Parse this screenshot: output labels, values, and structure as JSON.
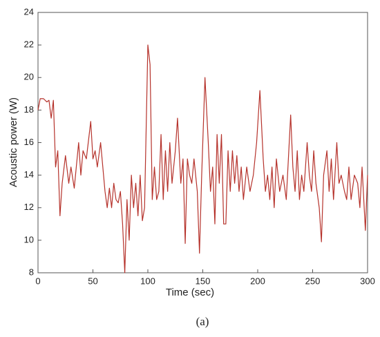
{
  "chart_data": {
    "type": "line",
    "x_label": "Time (sec)",
    "y_label": "Acoustic power (W)",
    "caption": "(a)",
    "x": [
      0,
      2,
      5,
      8,
      10,
      12,
      14,
      16,
      18,
      20,
      22,
      25,
      28,
      30,
      33,
      35,
      37,
      39,
      41,
      44,
      48,
      50,
      52,
      54,
      57,
      59,
      61,
      63,
      65,
      67,
      69,
      71,
      73,
      75,
      77,
      79,
      81,
      83,
      85,
      87,
      89,
      91,
      93,
      95,
      97,
      100,
      102,
      104,
      106,
      108,
      110,
      112,
      114,
      116,
      118,
      120,
      122,
      125,
      127,
      130,
      132,
      134,
      136,
      138,
      140,
      142,
      145,
      147,
      149,
      152,
      155,
      157,
      159,
      161,
      163,
      165,
      167,
      169,
      171,
      173,
      175,
      177,
      179,
      181,
      183,
      185,
      187,
      190,
      193,
      196,
      199,
      202,
      205,
      207,
      209,
      211,
      213,
      215,
      217,
      220,
      223,
      226,
      230,
      232,
      234,
      236,
      238,
      240,
      242,
      245,
      247,
      249,
      251,
      253,
      256,
      258,
      260,
      263,
      265,
      267,
      269,
      272,
      274,
      276,
      279,
      281,
      283,
      285,
      288,
      291,
      293,
      295,
      298,
      300
    ],
    "series": [
      {
        "name": "Acoustic power",
        "color": "#b5312a",
        "values": [
          18,
          18.7,
          18.7,
          18.5,
          18.6,
          17.5,
          18.6,
          14.5,
          15.5,
          11.5,
          13.5,
          15.2,
          13.5,
          14.5,
          13.2,
          14.6,
          16,
          14,
          15.5,
          15,
          17.3,
          15,
          15.5,
          14.5,
          16,
          14.5,
          13,
          12,
          13.2,
          12,
          13.5,
          12.5,
          12.3,
          13,
          11,
          8,
          12.5,
          10,
          14,
          12,
          13.5,
          11.5,
          14,
          11.2,
          12,
          22,
          20.8,
          12.5,
          14.5,
          12.5,
          13,
          16.5,
          12.5,
          15.5,
          13,
          16,
          13.5,
          15.5,
          17.5,
          13.5,
          15,
          9.8,
          15,
          14,
          13.5,
          15,
          13,
          9.2,
          14,
          20,
          16,
          13,
          14.5,
          11,
          16.5,
          13.5,
          16.5,
          11,
          11,
          15.5,
          13,
          15.5,
          13.5,
          15.2,
          13,
          14.5,
          12.5,
          14.5,
          13,
          14,
          16,
          19.2,
          15,
          13,
          14,
          12.5,
          14.5,
          12,
          15,
          13,
          14,
          12.5,
          17.7,
          14.5,
          13,
          15.5,
          12.5,
          14,
          13,
          16,
          14,
          13,
          15.5,
          13.5,
          12,
          9.9,
          14,
          15.5,
          13,
          15,
          12.5,
          16,
          13.5,
          14,
          13,
          12.5,
          14.5,
          12.5,
          14,
          13.5,
          12,
          14.5,
          10.6,
          14
        ]
      }
    ],
    "xlim": [
      0,
      300
    ],
    "xticks": [
      0,
      50,
      100,
      150,
      200,
      250,
      300
    ],
    "ylim": [
      8,
      24
    ],
    "yticks": [
      8,
      10,
      12,
      14,
      16,
      18,
      20,
      22,
      24
    ]
  }
}
